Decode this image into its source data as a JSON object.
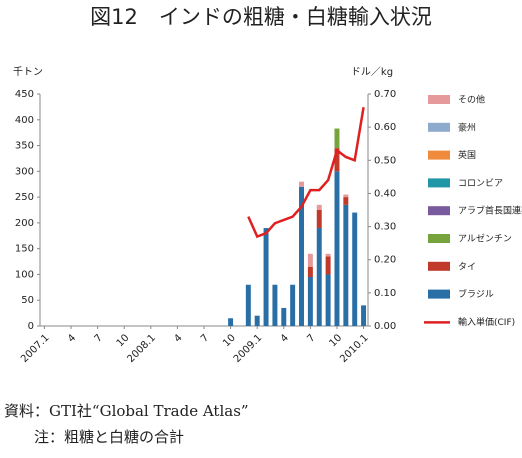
{
  "chart_data": {
    "type": "bar",
    "title": "図12　インドの粗糖・白糖輸入状況",
    "y_label": "千トン",
    "y2_label": "ドル／kg",
    "source": "資料：GTI社“Global Trade Atlas”",
    "note": "注：粗糖と白糖の合計",
    "categories": [
      "2007.1",
      null,
      null,
      "4",
      null,
      null,
      "7",
      null,
      null,
      "10",
      null,
      null,
      "2008.1",
      null,
      null,
      "4",
      null,
      null,
      "7",
      null,
      null,
      "10",
      null,
      null,
      "2009.1",
      null,
      null,
      "4",
      null,
      null,
      "7",
      null,
      null,
      "10",
      null,
      null,
      "2010.1"
    ],
    "ylim": [
      0,
      450
    ],
    "yticks": [
      0,
      50,
      100,
      150,
      200,
      250,
      300,
      350,
      400,
      450
    ],
    "y2lim": [
      0,
      0.7
    ],
    "y2ticks": [
      {
        "value": 0,
        "label": "0.00"
      },
      {
        "value": 0.1,
        "label": "0.10"
      },
      {
        "value": 0.2,
        "label": "0.20"
      },
      {
        "value": 0.3,
        "label": "0.30"
      },
      {
        "value": 0.4,
        "label": "0.40"
      },
      {
        "value": 0.5,
        "label": "0.50"
      },
      {
        "value": 0.6,
        "label": "0.60"
      },
      {
        "value": 0.7,
        "label": "0.70"
      }
    ],
    "grid": false,
    "series": [
      {
        "name": "ブラジル",
        "color": "#2a6ea6",
        "values": [
          null,
          null,
          null,
          null,
          null,
          null,
          null,
          null,
          null,
          null,
          null,
          null,
          null,
          null,
          null,
          null,
          null,
          null,
          null,
          null,
          null,
          15,
          null,
          80,
          20,
          190,
          80,
          35,
          80,
          270,
          95,
          190,
          100,
          300,
          235,
          220,
          40
        ]
      },
      {
        "name": "タイ",
        "color": "#c0392b",
        "values": [
          null,
          null,
          null,
          null,
          null,
          null,
          null,
          null,
          null,
          null,
          null,
          null,
          null,
          null,
          null,
          null,
          null,
          null,
          null,
          null,
          null,
          null,
          null,
          null,
          null,
          null,
          null,
          null,
          null,
          null,
          20,
          35,
          35,
          45,
          15,
          null,
          null
        ]
      },
      {
        "name": "アルゼンチン",
        "color": "#76a33c",
        "values": [
          null,
          null,
          null,
          null,
          null,
          null,
          null,
          null,
          null,
          null,
          null,
          null,
          null,
          null,
          null,
          null,
          null,
          null,
          null,
          null,
          null,
          null,
          null,
          null,
          null,
          null,
          null,
          null,
          null,
          null,
          null,
          null,
          null,
          38,
          null,
          null,
          null
        ]
      },
      {
        "name": "アラブ首長国連邦",
        "color": "#7a5a9e",
        "values": [
          null,
          null,
          null,
          null,
          null,
          null,
          null,
          null,
          null,
          null,
          null,
          null,
          null,
          null,
          null,
          null,
          null,
          null,
          null,
          null,
          null,
          null,
          null,
          null,
          null,
          null,
          null,
          null,
          null,
          null,
          null,
          null,
          null,
          null,
          null,
          null,
          null
        ]
      },
      {
        "name": "コロンビア",
        "color": "#2196a6",
        "values": [
          null,
          null,
          null,
          null,
          null,
          null,
          null,
          null,
          null,
          null,
          null,
          null,
          null,
          null,
          null,
          null,
          null,
          null,
          null,
          null,
          null,
          null,
          null,
          null,
          null,
          null,
          null,
          null,
          null,
          null,
          null,
          null,
          null,
          null,
          null,
          null,
          null
        ]
      },
      {
        "name": "英国",
        "color": "#f08a3c",
        "values": [
          null,
          null,
          null,
          null,
          null,
          null,
          null,
          null,
          null,
          null,
          null,
          null,
          null,
          null,
          null,
          null,
          null,
          null,
          null,
          null,
          null,
          null,
          null,
          null,
          null,
          null,
          null,
          null,
          null,
          null,
          null,
          null,
          null,
          null,
          null,
          null,
          null
        ]
      },
      {
        "name": "豪州",
        "color": "#8eaacc",
        "values": [
          null,
          null,
          null,
          null,
          null,
          null,
          null,
          null,
          null,
          null,
          null,
          null,
          null,
          null,
          null,
          null,
          null,
          null,
          null,
          null,
          null,
          null,
          null,
          null,
          null,
          null,
          null,
          null,
          null,
          null,
          null,
          null,
          null,
          null,
          null,
          null,
          null
        ]
      },
      {
        "name": "その他",
        "color": "#e6999a",
        "values": [
          null,
          null,
          null,
          null,
          null,
          null,
          null,
          null,
          null,
          null,
          null,
          null,
          null,
          null,
          null,
          null,
          null,
          null,
          null,
          null,
          null,
          null,
          null,
          null,
          null,
          null,
          null,
          null,
          null,
          10,
          25,
          10,
          5,
          null,
          5,
          null,
          null
        ]
      },
      {
        "name": "輸入単価(CIF)",
        "color": "#e02020",
        "type": "line",
        "axis": "y2",
        "values": [
          null,
          null,
          null,
          null,
          null,
          null,
          null,
          null,
          null,
          null,
          null,
          null,
          null,
          null,
          null,
          null,
          null,
          null,
          null,
          null,
          null,
          null,
          null,
          0.33,
          0.27,
          0.28,
          0.31,
          0.32,
          0.33,
          0.36,
          0.41,
          0.41,
          0.44,
          0.53,
          0.51,
          0.5,
          0.66
        ]
      }
    ]
  }
}
